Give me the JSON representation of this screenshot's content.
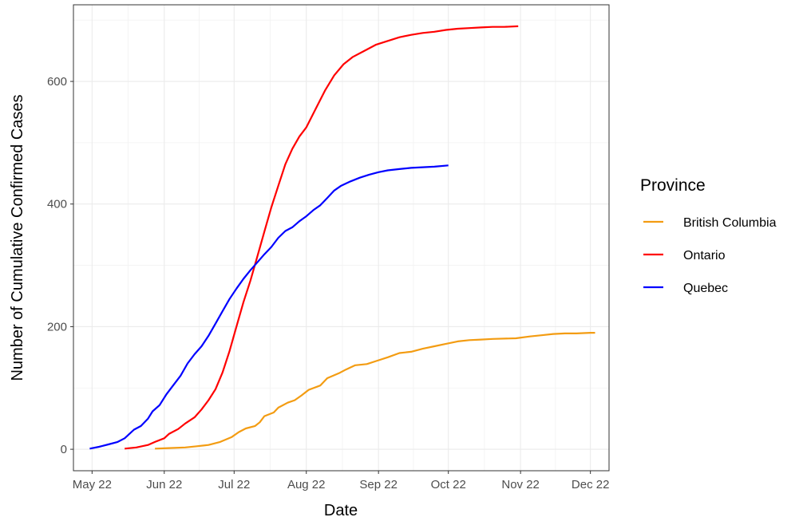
{
  "chart_data": {
    "type": "line",
    "xlabel": "Date",
    "ylabel": "Number of Cumulative Confirmed Cases",
    "xlim": [
      "2022-04-23",
      "2022-12-09"
    ],
    "ylim": [
      -35,
      725
    ],
    "x_ticks": [
      {
        "date": "2022-05-01",
        "label": "May 22"
      },
      {
        "date": "2022-06-01",
        "label": "Jun 22"
      },
      {
        "date": "2022-07-01",
        "label": "Jul 22"
      },
      {
        "date": "2022-08-01",
        "label": "Aug 22"
      },
      {
        "date": "2022-09-01",
        "label": "Sep 22"
      },
      {
        "date": "2022-10-01",
        "label": "Oct 22"
      },
      {
        "date": "2022-11-01",
        "label": "Nov 22"
      },
      {
        "date": "2022-12-01",
        "label": "Dec 22"
      }
    ],
    "y_ticks": [
      0,
      200,
      400,
      600
    ],
    "grid": true,
    "legend": {
      "title": "Province",
      "position": "right"
    },
    "series": [
      {
        "name": "British Columbia",
        "color": "#F39C12",
        "points": [
          [
            "2022-05-28",
            1
          ],
          [
            "2022-06-03",
            2
          ],
          [
            "2022-06-10",
            3
          ],
          [
            "2022-06-15",
            5
          ],
          [
            "2022-06-20",
            7
          ],
          [
            "2022-06-25",
            12
          ],
          [
            "2022-06-30",
            20
          ],
          [
            "2022-07-03",
            28
          ],
          [
            "2022-07-06",
            34
          ],
          [
            "2022-07-10",
            38
          ],
          [
            "2022-07-12",
            44
          ],
          [
            "2022-07-14",
            54
          ],
          [
            "2022-07-18",
            60
          ],
          [
            "2022-07-20",
            68
          ],
          [
            "2022-07-24",
            76
          ],
          [
            "2022-07-27",
            80
          ],
          [
            "2022-07-30",
            88
          ],
          [
            "2022-08-02",
            97
          ],
          [
            "2022-08-07",
            104
          ],
          [
            "2022-08-10",
            116
          ],
          [
            "2022-08-15",
            124
          ],
          [
            "2022-08-18",
            130
          ],
          [
            "2022-08-22",
            137
          ],
          [
            "2022-08-27",
            139
          ],
          [
            "2022-08-31",
            144
          ],
          [
            "2022-09-05",
            150
          ],
          [
            "2022-09-10",
            157
          ],
          [
            "2022-09-15",
            159
          ],
          [
            "2022-09-20",
            164
          ],
          [
            "2022-09-25",
            168
          ],
          [
            "2022-09-30",
            172
          ],
          [
            "2022-10-05",
            176
          ],
          [
            "2022-10-10",
            178
          ],
          [
            "2022-10-15",
            179
          ],
          [
            "2022-10-20",
            180
          ],
          [
            "2022-10-30",
            181
          ],
          [
            "2022-11-05",
            184
          ],
          [
            "2022-11-10",
            186
          ],
          [
            "2022-11-15",
            188
          ],
          [
            "2022-11-20",
            189
          ],
          [
            "2022-11-25",
            189
          ],
          [
            "2022-12-01",
            190
          ],
          [
            "2022-12-03",
            190
          ]
        ]
      },
      {
        "name": "Ontario",
        "color": "#FF0000",
        "points": [
          [
            "2022-05-15",
            1
          ],
          [
            "2022-05-20",
            3
          ],
          [
            "2022-05-25",
            7
          ],
          [
            "2022-05-28",
            12
          ],
          [
            "2022-06-01",
            18
          ],
          [
            "2022-06-03",
            25
          ],
          [
            "2022-06-07",
            33
          ],
          [
            "2022-06-10",
            42
          ],
          [
            "2022-06-14",
            52
          ],
          [
            "2022-06-17",
            65
          ],
          [
            "2022-06-20",
            80
          ],
          [
            "2022-06-23",
            98
          ],
          [
            "2022-06-26",
            125
          ],
          [
            "2022-06-29",
            160
          ],
          [
            "2022-07-02",
            200
          ],
          [
            "2022-07-05",
            240
          ],
          [
            "2022-07-08",
            275
          ],
          [
            "2022-07-11",
            315
          ],
          [
            "2022-07-14",
            355
          ],
          [
            "2022-07-17",
            395
          ],
          [
            "2022-07-20",
            430
          ],
          [
            "2022-07-23",
            465
          ],
          [
            "2022-07-26",
            490
          ],
          [
            "2022-07-29",
            510
          ],
          [
            "2022-08-01",
            525
          ],
          [
            "2022-08-05",
            555
          ],
          [
            "2022-08-09",
            585
          ],
          [
            "2022-08-13",
            610
          ],
          [
            "2022-08-17",
            628
          ],
          [
            "2022-08-21",
            640
          ],
          [
            "2022-08-26",
            650
          ],
          [
            "2022-08-31",
            660
          ],
          [
            "2022-09-05",
            666
          ],
          [
            "2022-09-10",
            672
          ],
          [
            "2022-09-15",
            676
          ],
          [
            "2022-09-20",
            679
          ],
          [
            "2022-09-25",
            681
          ],
          [
            "2022-09-30",
            684
          ],
          [
            "2022-10-05",
            686
          ],
          [
            "2022-10-10",
            687
          ],
          [
            "2022-10-15",
            688
          ],
          [
            "2022-10-20",
            689
          ],
          [
            "2022-10-25",
            689
          ],
          [
            "2022-10-31",
            690
          ]
        ]
      },
      {
        "name": "Quebec",
        "color": "#0000FF",
        "points": [
          [
            "2022-04-30",
            1
          ],
          [
            "2022-05-04",
            4
          ],
          [
            "2022-05-08",
            8
          ],
          [
            "2022-05-12",
            12
          ],
          [
            "2022-05-15",
            18
          ],
          [
            "2022-05-17",
            25
          ],
          [
            "2022-05-19",
            32
          ],
          [
            "2022-05-22",
            38
          ],
          [
            "2022-05-25",
            50
          ],
          [
            "2022-05-27",
            62
          ],
          [
            "2022-05-30",
            72
          ],
          [
            "2022-06-02",
            90
          ],
          [
            "2022-06-05",
            105
          ],
          [
            "2022-06-08",
            120
          ],
          [
            "2022-06-11",
            140
          ],
          [
            "2022-06-14",
            155
          ],
          [
            "2022-06-17",
            168
          ],
          [
            "2022-06-20",
            185
          ],
          [
            "2022-06-23",
            205
          ],
          [
            "2022-06-26",
            225
          ],
          [
            "2022-06-29",
            245
          ],
          [
            "2022-07-02",
            262
          ],
          [
            "2022-07-05",
            278
          ],
          [
            "2022-07-08",
            292
          ],
          [
            "2022-07-11",
            305
          ],
          [
            "2022-07-14",
            318
          ],
          [
            "2022-07-17",
            330
          ],
          [
            "2022-07-20",
            345
          ],
          [
            "2022-07-23",
            356
          ],
          [
            "2022-07-26",
            362
          ],
          [
            "2022-07-29",
            372
          ],
          [
            "2022-08-01",
            380
          ],
          [
            "2022-08-04",
            390
          ],
          [
            "2022-08-07",
            398
          ],
          [
            "2022-08-10",
            410
          ],
          [
            "2022-08-13",
            422
          ],
          [
            "2022-08-16",
            430
          ],
          [
            "2022-08-20",
            437
          ],
          [
            "2022-08-24",
            443
          ],
          [
            "2022-08-28",
            448
          ],
          [
            "2022-09-01",
            452
          ],
          [
            "2022-09-05",
            455
          ],
          [
            "2022-09-10",
            457
          ],
          [
            "2022-09-15",
            459
          ],
          [
            "2022-09-20",
            460
          ],
          [
            "2022-09-25",
            461
          ],
          [
            "2022-10-01",
            463
          ]
        ]
      }
    ]
  }
}
